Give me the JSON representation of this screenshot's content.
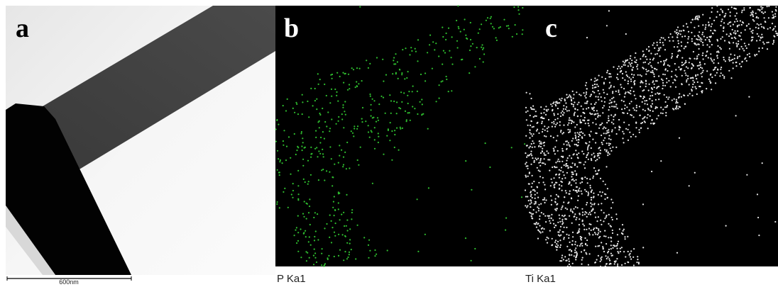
{
  "panels": [
    {
      "label": "a",
      "scale_bar": "600nm"
    },
    {
      "label": "b",
      "caption": "P Ka1"
    },
    {
      "label": "c",
      "caption": "Ti Ka1"
    }
  ]
}
